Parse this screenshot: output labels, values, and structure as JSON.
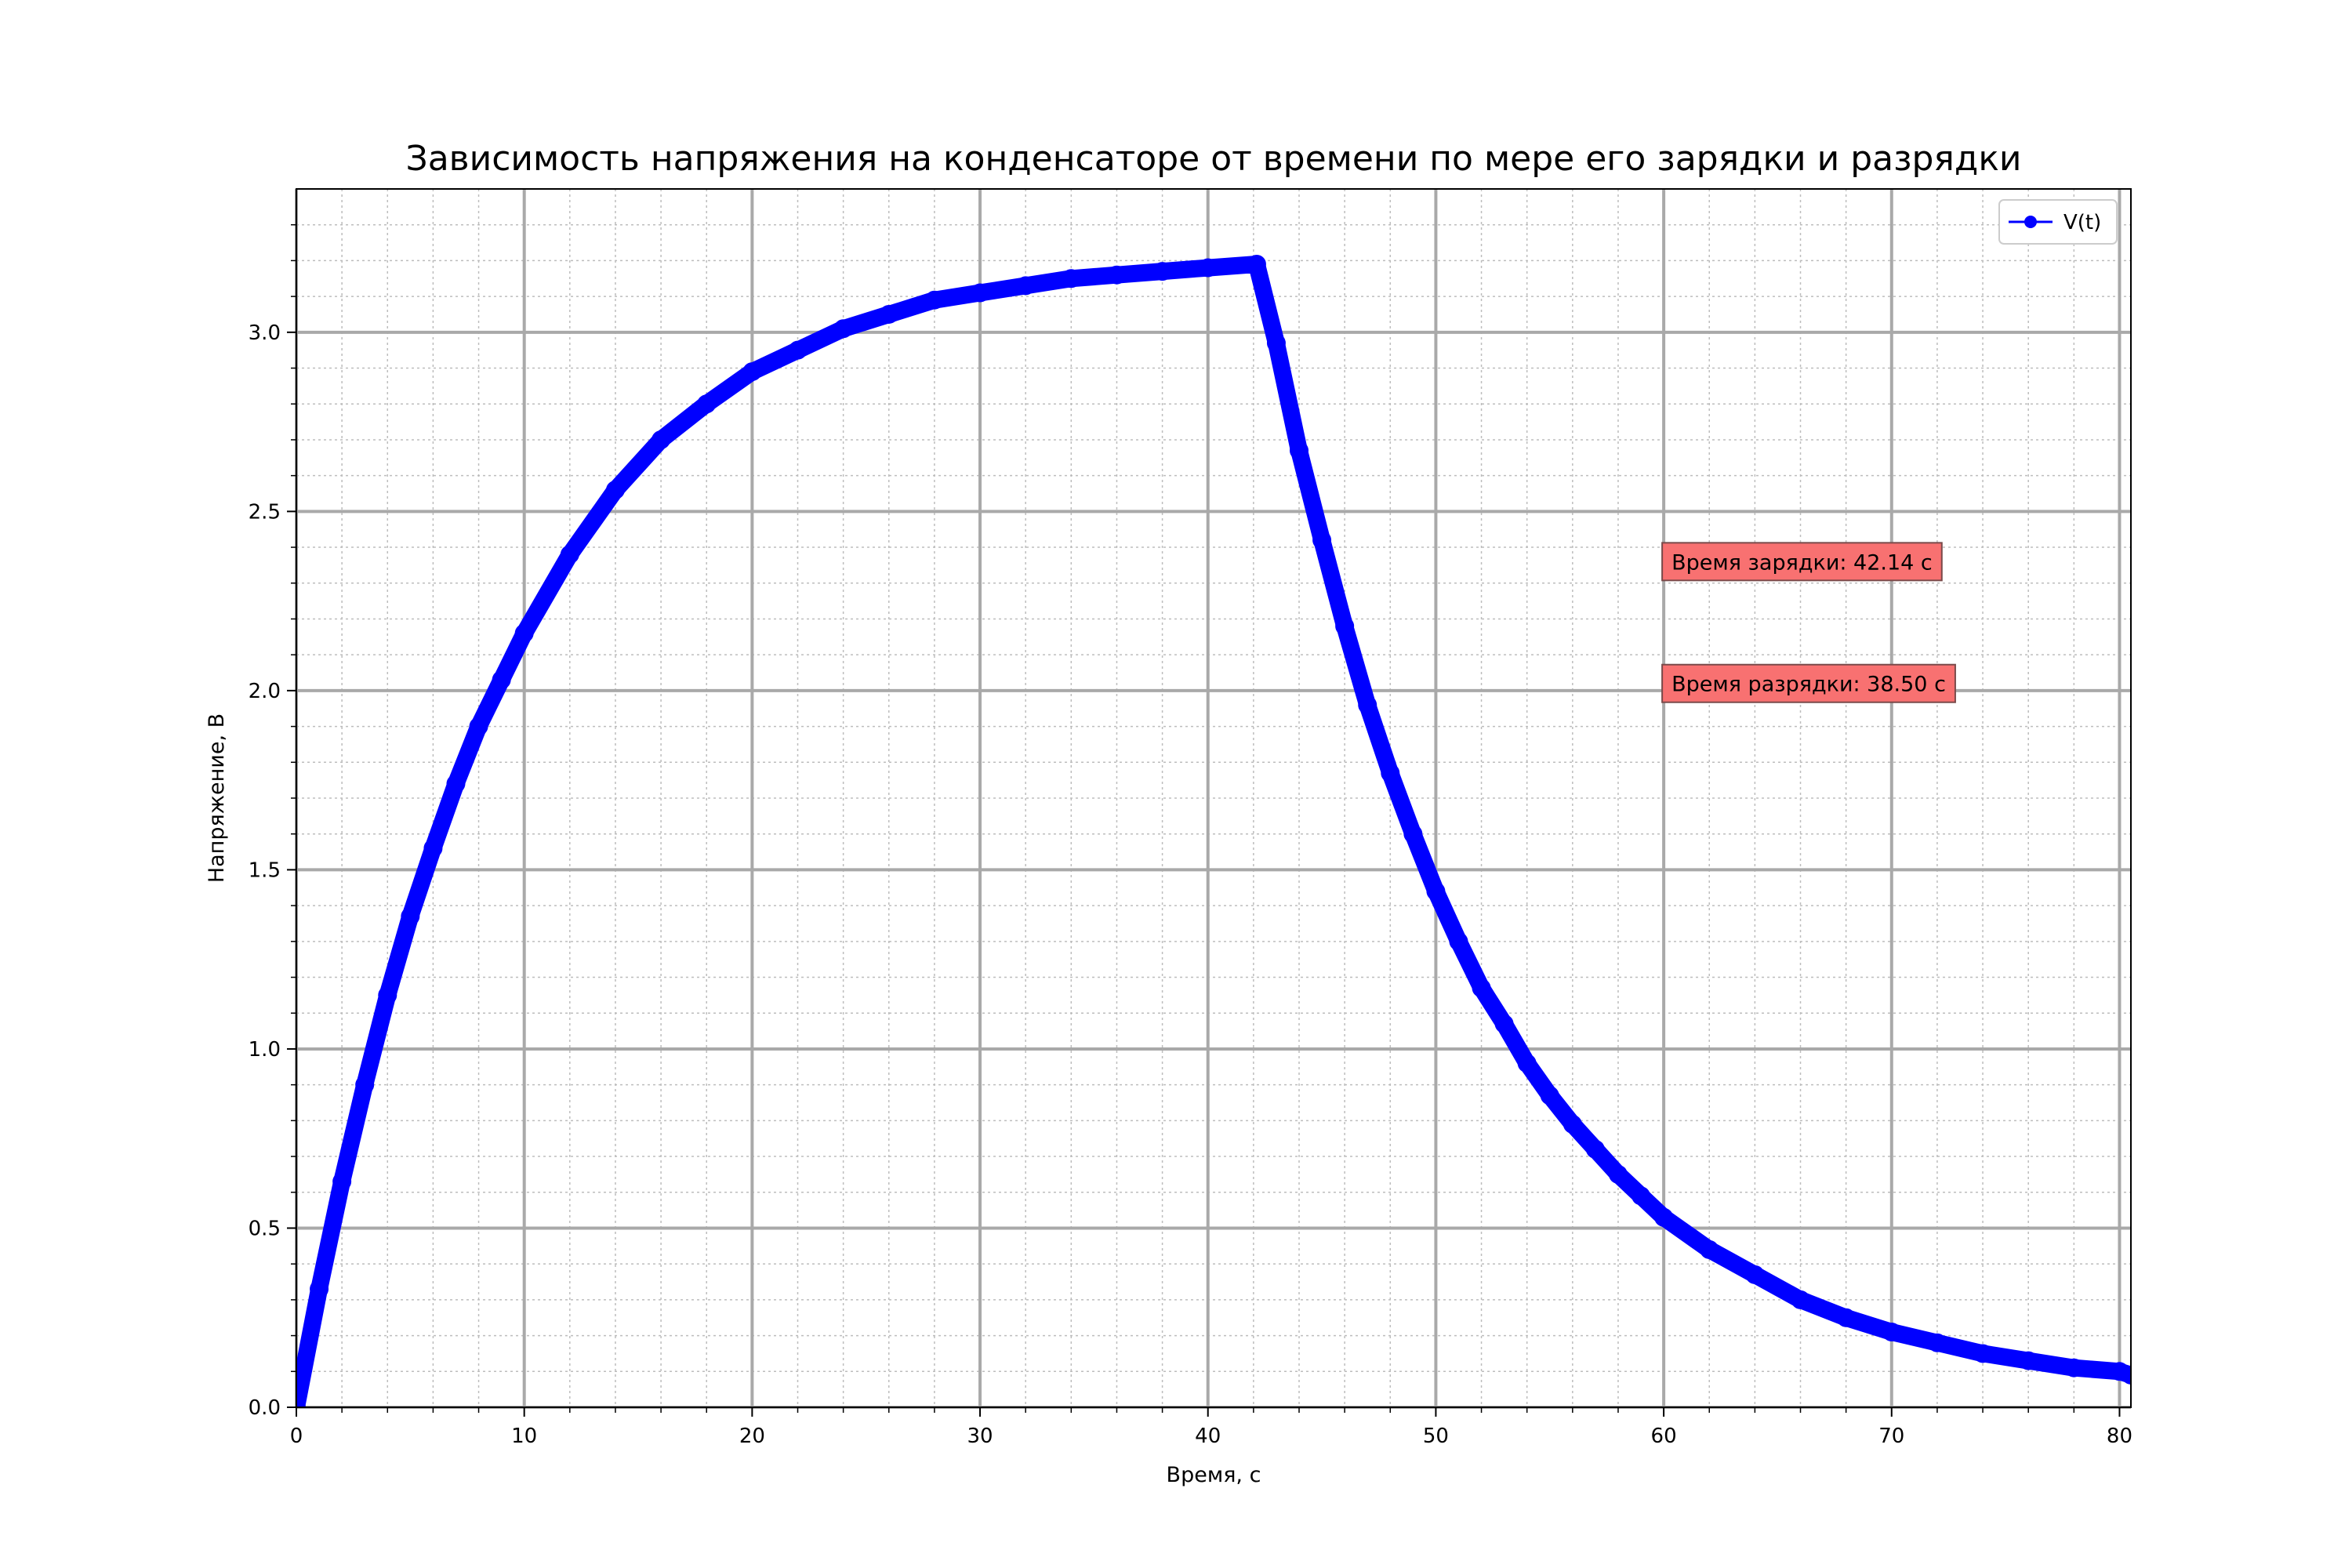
{
  "chart_data": {
    "type": "line",
    "title": "Зависимость напряжения на конденсаторе от времени по мере его зарядки и разрядки",
    "xlabel": "Время, с",
    "ylabel": "Напряжение, В",
    "xlim": [
      0,
      80.5
    ],
    "ylim": [
      0,
      3.4
    ],
    "x_ticks": [
      0,
      10,
      20,
      30,
      40,
      50,
      60,
      70,
      80
    ],
    "x_tick_labels": [
      "0",
      "10",
      "20",
      "30",
      "40",
      "50",
      "60",
      "70",
      "80"
    ],
    "y_ticks": [
      0,
      0.5,
      1.0,
      1.5,
      2.0,
      2.5,
      3.0
    ],
    "y_tick_labels": [
      "0.0",
      "0.5",
      "1.0",
      "1.5",
      "2.0",
      "2.5",
      "3.0"
    ],
    "grid": "major and minor",
    "legend_position": "top-right",
    "series": [
      {
        "name": "V(t)",
        "color": "#0000ff",
        "marker": "circle",
        "x": [
          0,
          1,
          2,
          3,
          4,
          5,
          6,
          7,
          8,
          9,
          10,
          12,
          14,
          16,
          18,
          20,
          22,
          24,
          26,
          28,
          30,
          32,
          34,
          36,
          38,
          40,
          42.14,
          43,
          44,
          45,
          46,
          47,
          48,
          49,
          50,
          51,
          52,
          53,
          54,
          55,
          56,
          57,
          58,
          59,
          60,
          62,
          64,
          66,
          68,
          70,
          72,
          74,
          76,
          78,
          80,
          80.5
        ],
        "y": [
          0.0,
          0.33,
          0.63,
          0.9,
          1.15,
          1.37,
          1.56,
          1.74,
          1.9,
          2.03,
          2.16,
          2.38,
          2.56,
          2.7,
          2.8,
          2.89,
          2.95,
          3.01,
          3.05,
          3.09,
          3.11,
          3.13,
          3.15,
          3.16,
          3.17,
          3.18,
          3.19,
          2.97,
          2.67,
          2.42,
          2.18,
          1.96,
          1.77,
          1.6,
          1.44,
          1.3,
          1.17,
          1.07,
          0.96,
          0.87,
          0.79,
          0.72,
          0.65,
          0.59,
          0.53,
          0.44,
          0.37,
          0.3,
          0.25,
          0.21,
          0.18,
          0.15,
          0.13,
          0.11,
          0.1,
          0.09
        ]
      }
    ],
    "annotations": [
      {
        "text": "Время зарядки: 42.14 с",
        "x": 60,
        "y": 2.36,
        "facecolor": "#f87171"
      },
      {
        "text": "Время разрядки: 38.50 с",
        "x": 60,
        "y": 2.02,
        "facecolor": "#f87171"
      }
    ]
  }
}
